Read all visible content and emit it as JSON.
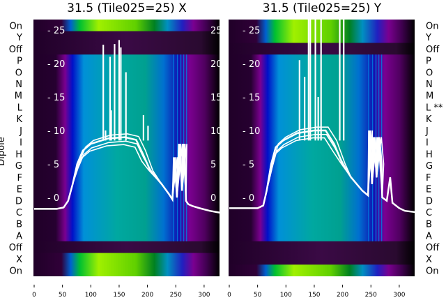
{
  "chart_data": [
    {
      "type": "heatmap",
      "title": "31.5 (Tile025=25) X",
      "ylabel": "Dipole",
      "row_labels": [
        "On",
        "Y",
        "Off",
        "P",
        "O",
        "N",
        "M",
        "L",
        "K",
        "J",
        "I",
        "H",
        "G",
        "F",
        "E",
        "D",
        "C",
        "B",
        "A",
        "Off",
        "X",
        "On"
      ],
      "row_kinds": [
        "on",
        "off",
        "off",
        "data",
        "data",
        "data",
        "data",
        "data",
        "data",
        "data",
        "data",
        "data",
        "data",
        "data",
        "data",
        "data",
        "data",
        "data",
        "data",
        "off",
        "on",
        "on"
      ],
      "xlim": [
        0,
        330
      ],
      "xticks": [
        "0",
        "50",
        "100",
        "150",
        "200",
        "250",
        "300"
      ],
      "overlay_yticks": [
        "25",
        "20",
        "15",
        "10",
        "5",
        "0"
      ],
      "overlay_ylim": [
        -5,
        27
      ],
      "line_profile": [
        [
          0,
          -1.7
        ],
        [
          40,
          -1.7
        ],
        [
          52,
          -1.5
        ],
        [
          60,
          -0.5
        ],
        [
          68,
          2
        ],
        [
          76,
          5
        ],
        [
          86,
          7
        ],
        [
          100,
          8
        ],
        [
          130,
          8.8
        ],
        [
          160,
          9
        ],
        [
          180,
          8.6
        ],
        [
          192,
          6.5
        ],
        [
          205,
          4
        ],
        [
          225,
          2
        ],
        [
          238,
          0.5
        ],
        [
          244,
          -0.3
        ],
        [
          248,
          6
        ],
        [
          252,
          0
        ],
        [
          257,
          8
        ],
        [
          261,
          1
        ],
        [
          265,
          8
        ],
        [
          268,
          -0.5
        ],
        [
          272,
          -1
        ],
        [
          280,
          -1.3
        ],
        [
          292,
          -1.6
        ],
        [
          310,
          -2
        ],
        [
          330,
          -2.3
        ]
      ],
      "spikes": [
        [
          122,
          22.8
        ],
        [
          126,
          10
        ],
        [
          134,
          21
        ],
        [
          136,
          13
        ],
        [
          142,
          22.9
        ],
        [
          150,
          23.5
        ],
        [
          153,
          22.4
        ],
        [
          162,
          18.7
        ],
        [
          193,
          12.3
        ],
        [
          201,
          10.7
        ]
      ]
    },
    {
      "type": "heatmap",
      "title": "31.5 (Tile025=25) Y",
      "row_labels": [
        "On",
        "Y",
        "Off",
        "P",
        "O",
        "N",
        "M",
        "L **",
        "K",
        "J",
        "I",
        "H",
        "G",
        "F",
        "E",
        "D",
        "C",
        "B",
        "A",
        "Off",
        "X",
        "On"
      ],
      "row_kinds": [
        "on",
        "on",
        "off",
        "data",
        "data",
        "data",
        "data",
        "data",
        "data",
        "data",
        "data",
        "data",
        "data",
        "data",
        "data",
        "data",
        "data",
        "data",
        "data",
        "off",
        "off",
        "on"
      ],
      "xlim": [
        0,
        330
      ],
      "xticks": [
        "0",
        "50",
        "100",
        "150",
        "200",
        "250",
        "300"
      ],
      "overlay_yticks": [
        "25",
        "20",
        "15",
        "10",
        "5",
        "0"
      ],
      "overlay_ylim": [
        -5,
        27
      ],
      "line_profile": [
        [
          0,
          -1.6
        ],
        [
          50,
          -1.6
        ],
        [
          60,
          -1.2
        ],
        [
          66,
          1
        ],
        [
          74,
          5
        ],
        [
          82,
          7.5
        ],
        [
          95,
          8.5
        ],
        [
          120,
          9.6
        ],
        [
          150,
          10
        ],
        [
          170,
          10
        ],
        [
          185,
          8
        ],
        [
          200,
          5
        ],
        [
          215,
          3
        ],
        [
          235,
          1
        ],
        [
          245,
          0.3
        ],
        [
          248,
          10
        ],
        [
          252,
          2
        ],
        [
          256,
          9
        ],
        [
          260,
          3
        ],
        [
          264,
          9
        ],
        [
          268,
          5
        ],
        [
          270,
          0
        ],
        [
          278,
          -0.5
        ],
        [
          284,
          3
        ],
        [
          288,
          -0.8
        ],
        [
          300,
          -1.6
        ],
        [
          310,
          -2
        ],
        [
          330,
          -2.2
        ]
      ],
      "spikes": [
        [
          124,
          20.5
        ],
        [
          133,
          18
        ],
        [
          140,
          30
        ],
        [
          143,
          30
        ],
        [
          152,
          30
        ],
        [
          157,
          15
        ],
        [
          162,
          30
        ],
        [
          195,
          30
        ],
        [
          202,
          30
        ]
      ]
    }
  ],
  "colors": {
    "line": "#ffffff",
    "on_row": "#9cf500",
    "off_row": "#2a0a30",
    "data_row": "#00a89a"
  }
}
